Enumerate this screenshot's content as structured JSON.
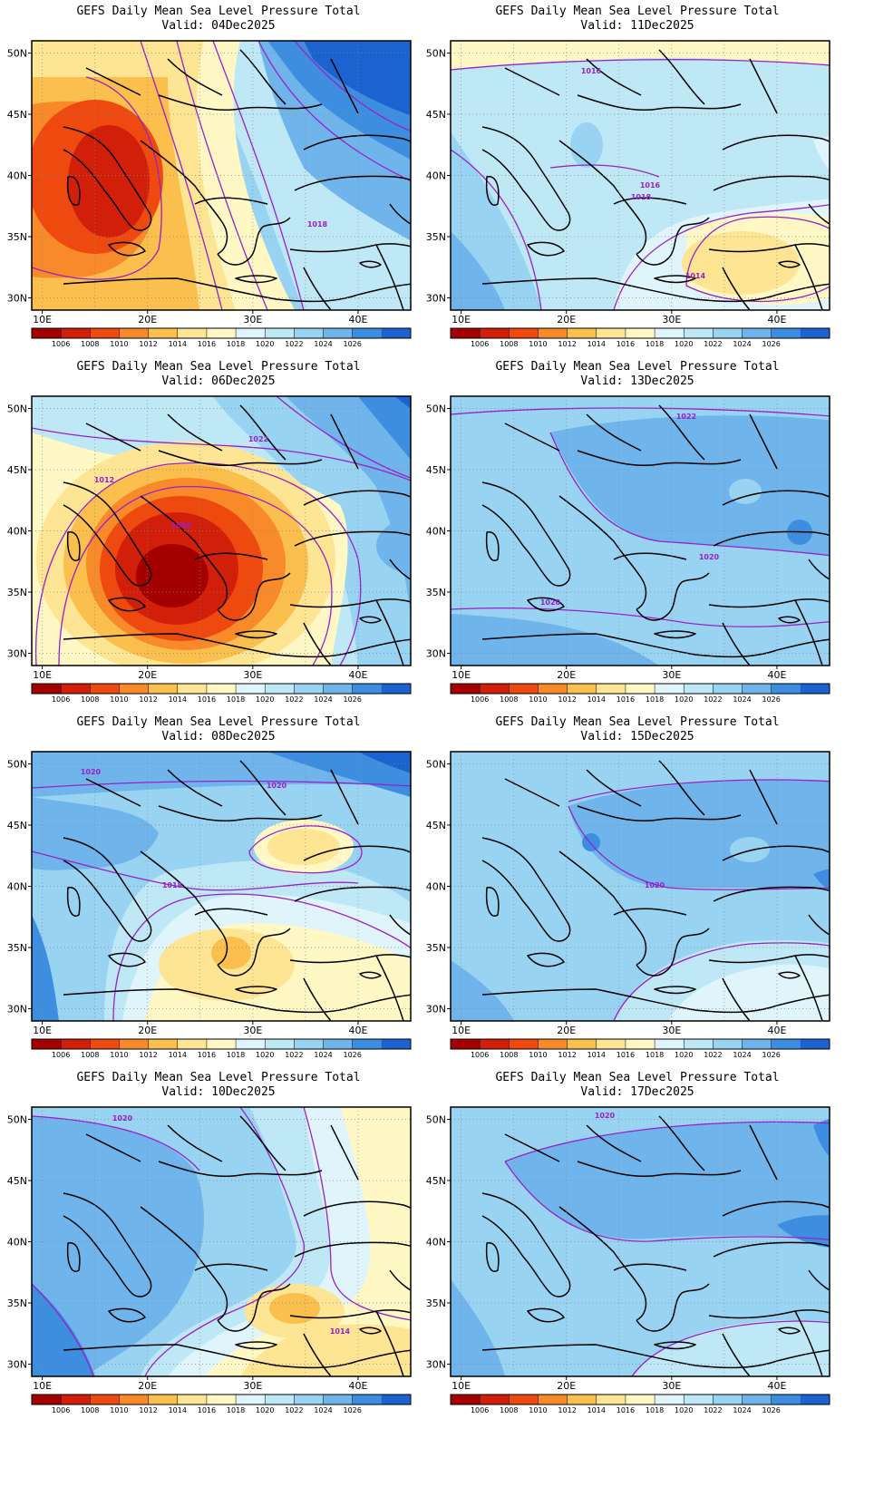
{
  "figure": {
    "title": "GEFS Daily Mean Sea Level Pressure Total",
    "lon_ticks": [
      "10E",
      "20E",
      "30E",
      "40E"
    ],
    "lat_ticks": [
      "50N",
      "45N",
      "40N",
      "35N",
      "30N"
    ],
    "colorbar_levels": [
      "1006",
      "1008",
      "1010",
      "1012",
      "1014",
      "1016",
      "1018",
      "1020",
      "1022",
      "1024",
      "1026"
    ],
    "colorbar_colors": [
      "#a50000",
      "#d21f0a",
      "#ee4a10",
      "#f98a2a",
      "#fbbf4e",
      "#fde593",
      "#fff8c4",
      "#dff5fb",
      "#bfe8f7",
      "#99d3f2",
      "#6fb4ea",
      "#3d8ee0",
      "#1c63d0"
    ]
  },
  "panels": [
    {
      "valid": "Valid: 04Dec2025",
      "contour_labels": [
        "1018"
      ]
    },
    {
      "valid": "Valid: 11Dec2025",
      "contour_labels": [
        "1016",
        "1018",
        "1016",
        "1014"
      ]
    },
    {
      "valid": "Valid: 06Dec2025",
      "contour_labels": [
        "1022",
        "1012",
        "1006"
      ]
    },
    {
      "valid": "Valid: 13Dec2025",
      "contour_labels": [
        "1022",
        "1020",
        "1020"
      ]
    },
    {
      "valid": "Valid: 08Dec2025",
      "contour_labels": [
        "1020",
        "1020",
        "1018"
      ]
    },
    {
      "valid": "Valid: 15Dec2025",
      "contour_labels": [
        "1020"
      ]
    },
    {
      "valid": "Valid: 10Dec2025",
      "contour_labels": [
        "1020",
        "1014"
      ]
    },
    {
      "valid": "Valid: 17Dec2025",
      "contour_labels": [
        "1020"
      ]
    }
  ]
}
